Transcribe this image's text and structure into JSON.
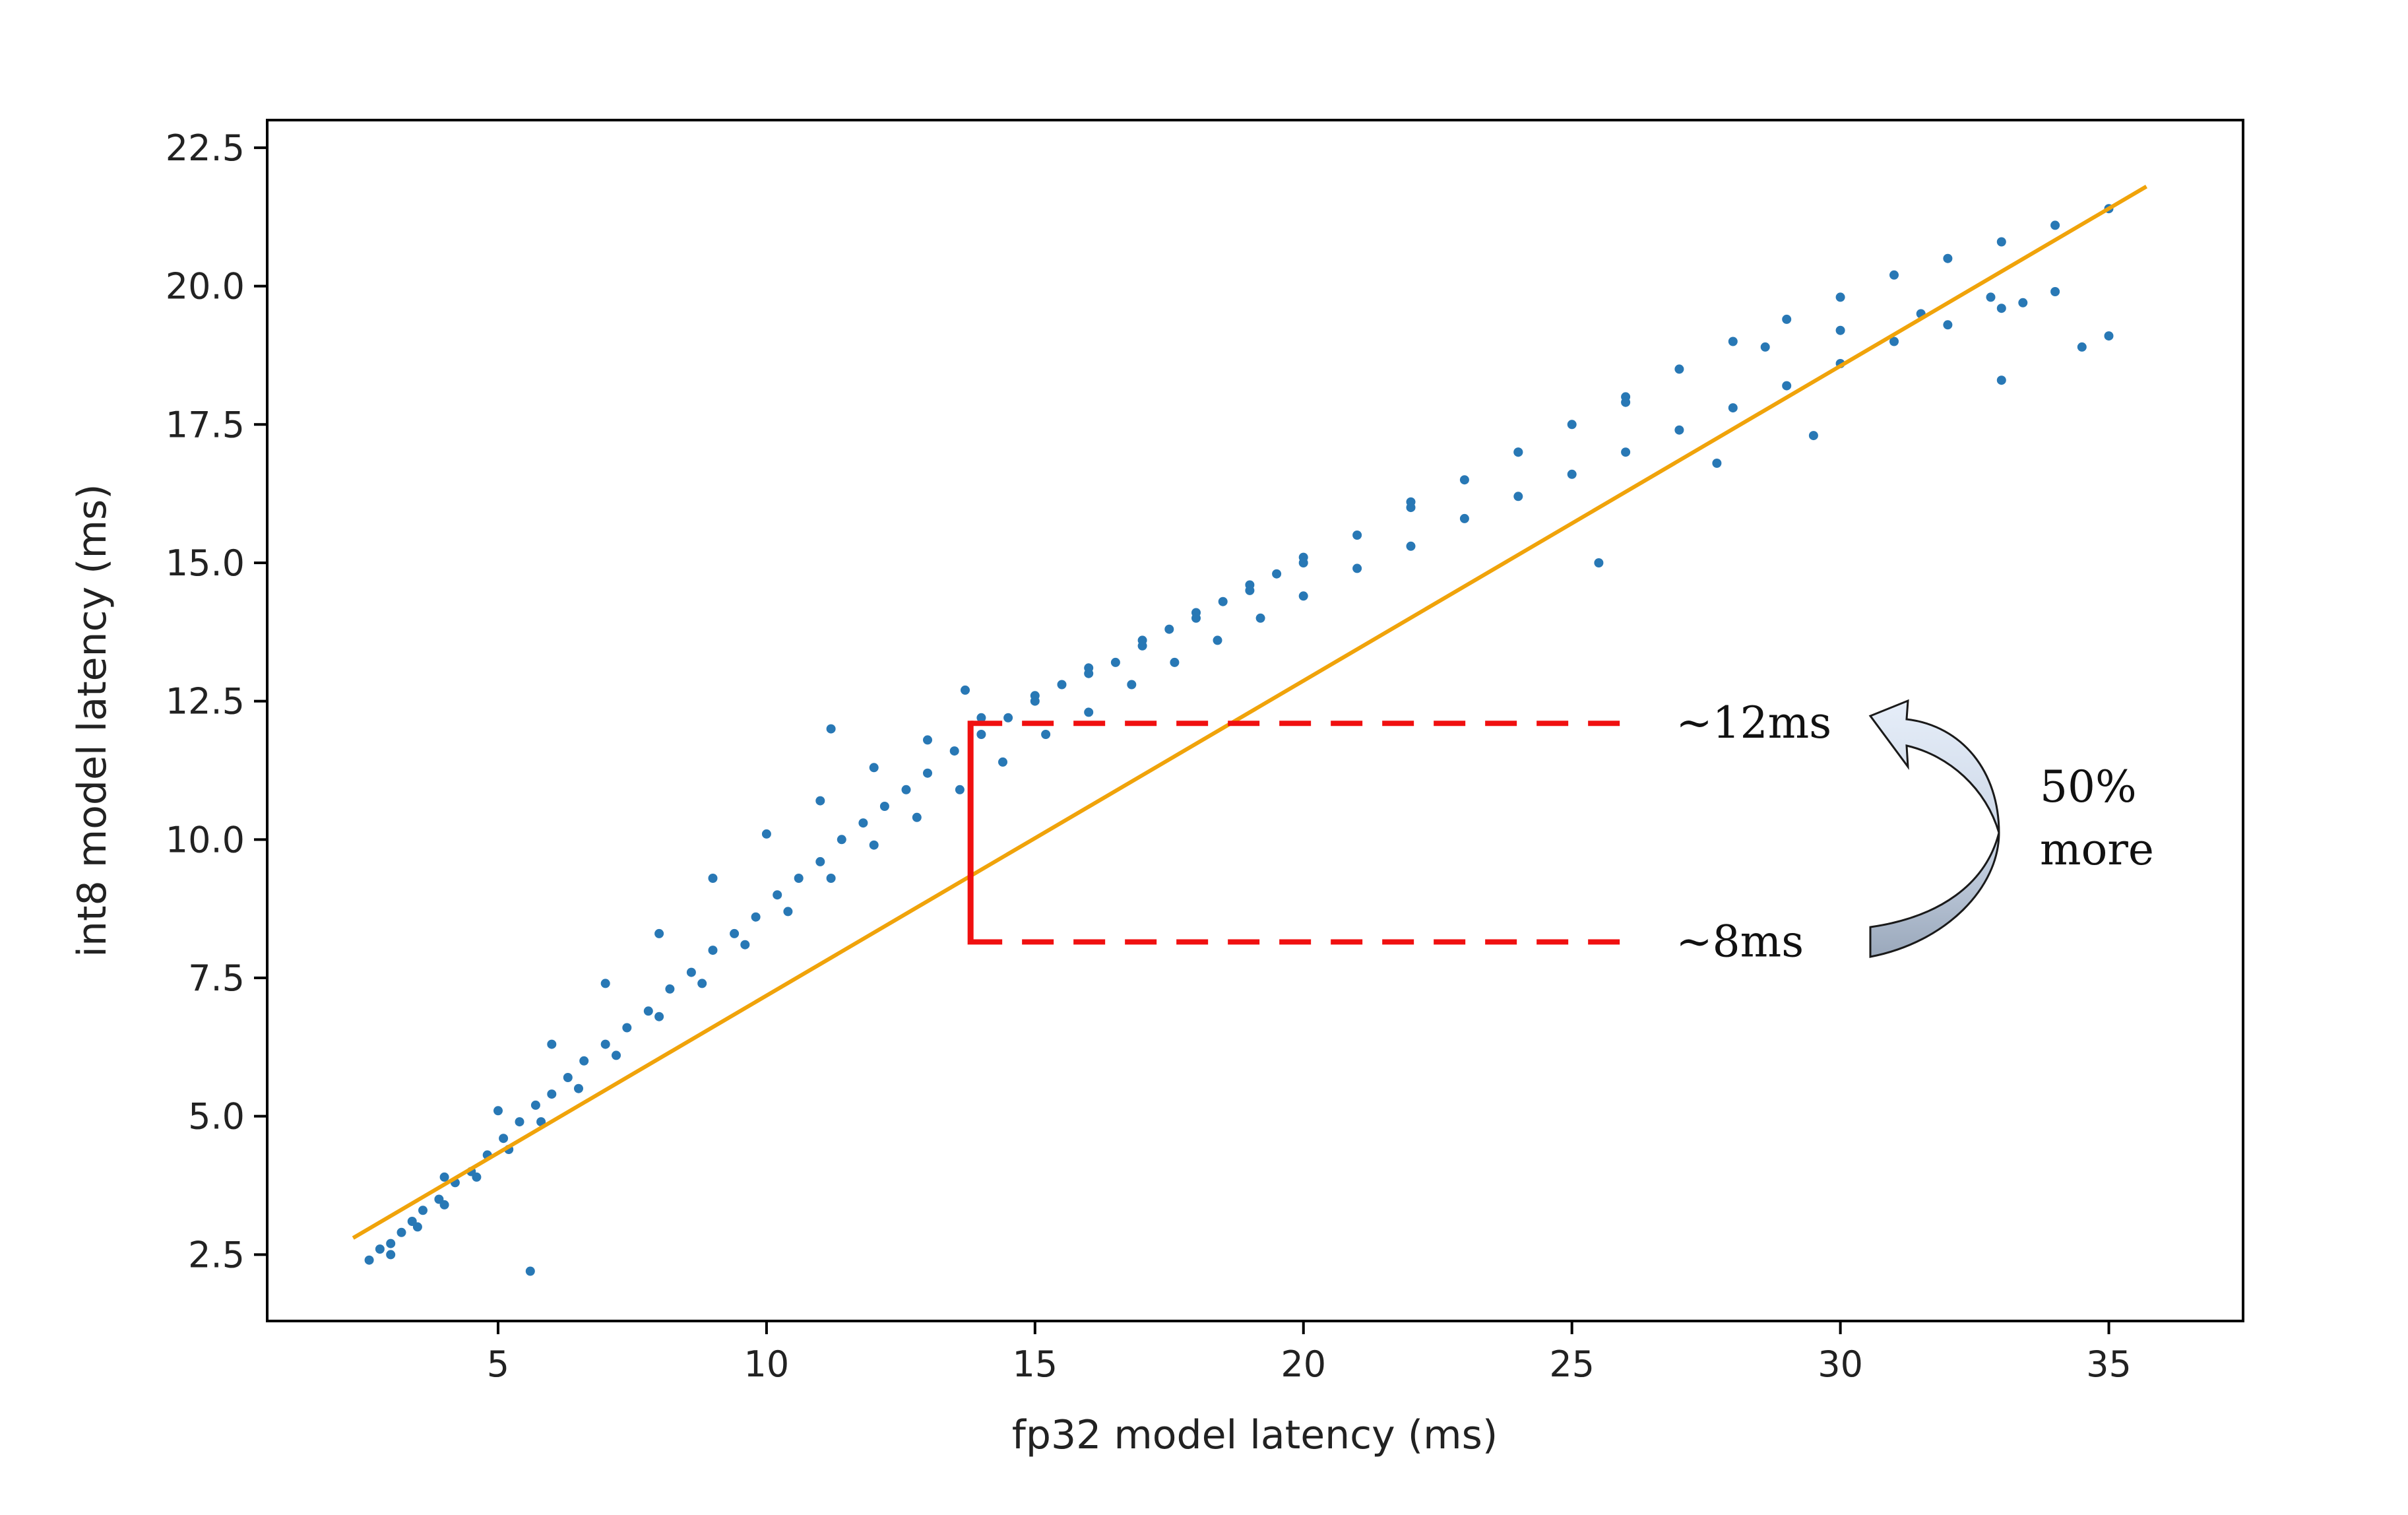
{
  "chart_data": {
    "type": "scatter",
    "title": "",
    "xlabel": "fp32 model latency (ms)",
    "ylabel": "int8 model latency (ms)",
    "xlim": [
      0.7,
      37.5
    ],
    "ylim": [
      1.3,
      23.0
    ],
    "xticks": [
      5,
      10,
      15,
      20,
      25,
      30,
      35
    ],
    "xtick_labels": [
      "5",
      "10",
      "15",
      "20",
      "25",
      "30",
      "35"
    ],
    "yticks": [
      2.5,
      5.0,
      7.5,
      10.0,
      12.5,
      15.0,
      17.5,
      20.0,
      22.5
    ],
    "ytick_labels": [
      "2.5",
      "5.0",
      "7.5",
      "10.0",
      "12.5",
      "15.0",
      "17.5",
      "20.0",
      "22.5"
    ],
    "grid": false,
    "legend": "none",
    "series": [
      {
        "type": "scatter",
        "color": "#2878b5",
        "points": [
          [
            2.6,
            2.4
          ],
          [
            2.8,
            2.6
          ],
          [
            3.0,
            2.7
          ],
          [
            3.2,
            2.9
          ],
          [
            3.4,
            3.1
          ],
          [
            3.6,
            3.3
          ],
          [
            3.9,
            3.5
          ],
          [
            4.2,
            3.8
          ],
          [
            4.5,
            4.0
          ],
          [
            4.8,
            4.3
          ],
          [
            5.1,
            4.6
          ],
          [
            5.4,
            4.9
          ],
          [
            5.7,
            5.2
          ],
          [
            6.0,
            5.4
          ],
          [
            6.3,
            5.7
          ],
          [
            6.6,
            6.0
          ],
          [
            7.0,
            6.3
          ],
          [
            7.4,
            6.6
          ],
          [
            7.8,
            6.9
          ],
          [
            8.2,
            7.3
          ],
          [
            8.6,
            7.6
          ],
          [
            9.0,
            8.0
          ],
          [
            9.4,
            8.3
          ],
          [
            9.8,
            8.6
          ],
          [
            10.2,
            9.0
          ],
          [
            10.6,
            9.3
          ],
          [
            11.0,
            9.6
          ],
          [
            11.4,
            10.0
          ],
          [
            11.8,
            10.3
          ],
          [
            12.2,
            10.6
          ],
          [
            12.6,
            10.9
          ],
          [
            13.0,
            11.2
          ],
          [
            13.5,
            11.6
          ],
          [
            14.0,
            11.9
          ],
          [
            14.5,
            12.2
          ],
          [
            15.0,
            12.5
          ],
          [
            15.5,
            12.8
          ],
          [
            16.0,
            13.0
          ],
          [
            16.5,
            13.2
          ],
          [
            17.0,
            13.5
          ],
          [
            17.5,
            13.8
          ],
          [
            18.0,
            14.0
          ],
          [
            18.5,
            14.3
          ],
          [
            19.0,
            14.5
          ],
          [
            19.5,
            14.8
          ],
          [
            20.0,
            15.0
          ],
          [
            21.0,
            15.5
          ],
          [
            22.0,
            16.0
          ],
          [
            23.0,
            16.5
          ],
          [
            24.0,
            17.0
          ],
          [
            25.0,
            17.5
          ],
          [
            26.0,
            18.0
          ],
          [
            27.0,
            18.5
          ],
          [
            28.0,
            19.0
          ],
          [
            29.0,
            19.4
          ],
          [
            30.0,
            19.8
          ],
          [
            31.0,
            20.2
          ],
          [
            32.0,
            20.5
          ],
          [
            33.0,
            20.8
          ],
          [
            34.0,
            21.1
          ],
          [
            35.0,
            21.4
          ],
          [
            3.0,
            2.5
          ],
          [
            3.5,
            3.0
          ],
          [
            4.0,
            3.4
          ],
          [
            4.6,
            3.9
          ],
          [
            5.2,
            4.4
          ],
          [
            5.8,
            4.9
          ],
          [
            6.5,
            5.5
          ],
          [
            7.2,
            6.1
          ],
          [
            8.0,
            6.8
          ],
          [
            8.8,
            7.4
          ],
          [
            9.6,
            8.1
          ],
          [
            10.4,
            8.7
          ],
          [
            11.2,
            9.3
          ],
          [
            12.0,
            9.9
          ],
          [
            12.8,
            10.4
          ],
          [
            13.6,
            10.9
          ],
          [
            14.4,
            11.4
          ],
          [
            15.2,
            11.9
          ],
          [
            16.0,
            12.3
          ],
          [
            16.8,
            12.8
          ],
          [
            17.6,
            13.2
          ],
          [
            18.4,
            13.6
          ],
          [
            19.2,
            14.0
          ],
          [
            20.0,
            14.4
          ],
          [
            21.0,
            14.9
          ],
          [
            22.0,
            15.3
          ],
          [
            23.0,
            15.8
          ],
          [
            24.0,
            16.2
          ],
          [
            25.0,
            16.6
          ],
          [
            26.0,
            17.0
          ],
          [
            27.0,
            17.4
          ],
          [
            28.0,
            17.8
          ],
          [
            29.0,
            18.2
          ],
          [
            30.0,
            18.6
          ],
          [
            31.0,
            19.0
          ],
          [
            32.0,
            19.3
          ],
          [
            33.0,
            19.6
          ],
          [
            34.0,
            19.9
          ],
          [
            35.0,
            19.1
          ],
          [
            4.0,
            3.9
          ],
          [
            5.0,
            5.1
          ],
          [
            6.0,
            6.3
          ],
          [
            7.0,
            7.4
          ],
          [
            8.0,
            8.3
          ],
          [
            9.0,
            9.3
          ],
          [
            10.0,
            10.1
          ],
          [
            11.0,
            10.7
          ],
          [
            12.0,
            11.3
          ],
          [
            13.0,
            11.8
          ],
          [
            14.0,
            12.2
          ],
          [
            15.0,
            12.6
          ],
          [
            16.0,
            13.1
          ],
          [
            17.0,
            13.6
          ],
          [
            18.0,
            14.1
          ],
          [
            19.0,
            14.6
          ],
          [
            20.0,
            15.1
          ],
          [
            22.0,
            16.1
          ],
          [
            24.0,
            17.0
          ],
          [
            26.0,
            17.9
          ],
          [
            28.6,
            18.9
          ],
          [
            30.0,
            19.2
          ],
          [
            31.5,
            19.5
          ],
          [
            32.8,
            19.8
          ],
          [
            33.4,
            19.7
          ],
          [
            34.5,
            18.9
          ],
          [
            33.0,
            18.3
          ],
          [
            11.2,
            12.0
          ],
          [
            13.7,
            12.7
          ],
          [
            5.6,
            2.2
          ],
          [
            27.7,
            16.8
          ],
          [
            29.5,
            17.3
          ],
          [
            25.5,
            15.0
          ]
        ]
      },
      {
        "type": "line",
        "name": "",
        "color": "#f0a30a",
        "x": [
          2.3,
          35.7
        ],
        "y": [
          2.8,
          21.8
        ]
      }
    ],
    "annotations": {
      "bracket_color": "#f01010",
      "bracket_x": 13.8,
      "top_line_y": 12.1,
      "bottom_line_y": 8.15,
      "line_end_x": 26.2,
      "top_label": "~12ms",
      "bottom_label": "~8ms",
      "arrow_label_line1": "50%",
      "arrow_label_line2": "more"
    }
  }
}
